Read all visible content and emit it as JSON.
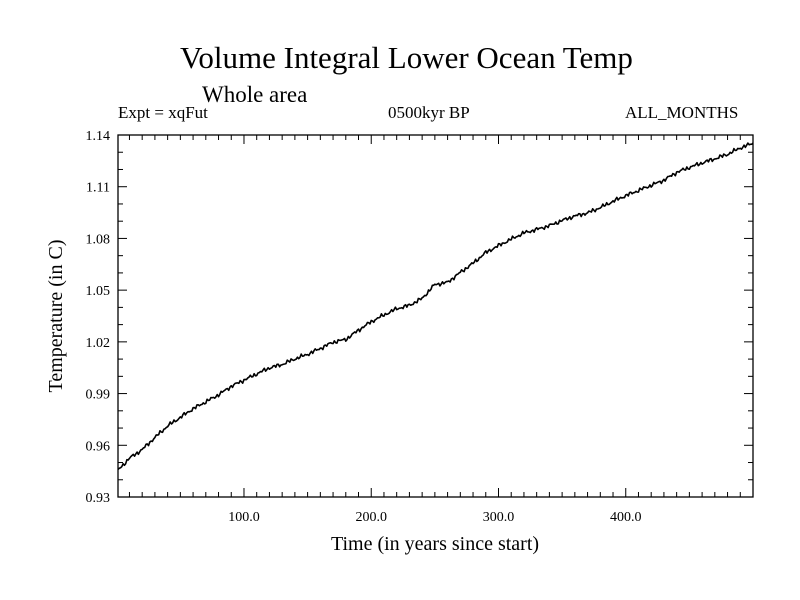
{
  "chart_data": {
    "type": "line",
    "title": "Volume Integral Lower Ocean Temp",
    "subtitle": "Whole area",
    "annotations": {
      "left": "Expt = xqFut",
      "center": "0500kyr BP",
      "right": "ALL_MONTHS"
    },
    "xlabel": "Time (in years since start)",
    "ylabel": "Temperature (in C)",
    "xlim": [
      1,
      500
    ],
    "ylim": [
      0.93,
      1.14
    ],
    "x_ticks": [
      100,
      200,
      300,
      400
    ],
    "x_tick_labels": [
      "100.0",
      "200.0",
      "300.0",
      "400.0"
    ],
    "y_ticks": [
      0.93,
      0.96,
      0.99,
      1.02,
      1.05,
      1.08,
      1.11,
      1.14
    ],
    "y_tick_labels": [
      "0.93",
      "0.96",
      "0.99",
      "1.02",
      "1.05",
      "1.08",
      "1.11",
      "1.14"
    ],
    "grid": false,
    "series": [
      {
        "name": "Lower Ocean Temp",
        "color": "#000000",
        "x": [
          1,
          10,
          20,
          30,
          40,
          50,
          60,
          70,
          80,
          90,
          100,
          110,
          120,
          130,
          140,
          150,
          160,
          170,
          180,
          190,
          200,
          210,
          220,
          230,
          240,
          250,
          260,
          270,
          280,
          290,
          300,
          310,
          320,
          330,
          340,
          350,
          360,
          370,
          380,
          390,
          400,
          410,
          420,
          430,
          440,
          450,
          460,
          470,
          480,
          490,
          500
        ],
        "values": [
          0.9455,
          0.9525,
          0.9575,
          0.9645,
          0.9712,
          0.9762,
          0.9812,
          0.9852,
          0.9893,
          0.9942,
          0.9978,
          1.0014,
          1.0049,
          1.0069,
          1.0101,
          1.0128,
          1.0162,
          1.0198,
          1.0214,
          1.0268,
          1.0317,
          1.0356,
          1.0392,
          1.0412,
          1.0452,
          1.0533,
          1.0545,
          1.0603,
          1.0656,
          1.0718,
          1.0758,
          1.0796,
          1.0832,
          1.0852,
          1.0874,
          1.0904,
          1.093,
          1.0948,
          1.0979,
          1.1015,
          1.1048,
          1.1078,
          1.1108,
          1.1138,
          1.1183,
          1.1212,
          1.1238,
          1.1262,
          1.1288,
          1.1325,
          1.1352
        ]
      }
    ]
  }
}
